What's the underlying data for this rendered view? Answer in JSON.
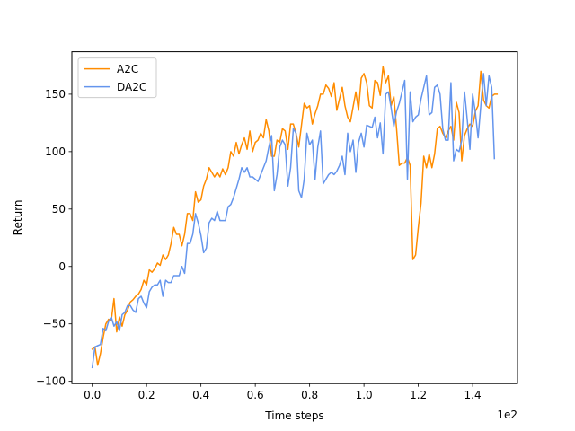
{
  "chart_data": {
    "type": "line",
    "xlabel": "Time steps",
    "ylabel": "Return",
    "x_offset_label": "1e2",
    "xlim": [
      -0.075,
      1.565
    ],
    "ylim": [
      -102,
      187
    ],
    "x_ticks": [
      0.0,
      0.2,
      0.4,
      0.6,
      0.8,
      1.0,
      1.2,
      1.4
    ],
    "x_tick_labels": [
      "0.0",
      "0.2",
      "0.4",
      "0.6",
      "0.8",
      "1.0",
      "1.2",
      "1.4"
    ],
    "y_ticks": [
      -100,
      -50,
      0,
      50,
      100,
      150
    ],
    "y_tick_labels": [
      "−100",
      "−50",
      "0",
      "50",
      "100",
      "150"
    ],
    "legend_position": "top-left",
    "series": [
      {
        "name": "A2C",
        "color": "#ff8c00",
        "x_start": 0.0,
        "x_step": 0.01,
        "values": [
          -72,
          -70,
          -86,
          -76,
          -62,
          -50,
          -46,
          -47,
          -28,
          -57,
          -44,
          -52,
          -42,
          -38,
          -31,
          -29,
          -26,
          -24,
          -20,
          -12,
          -16,
          -3,
          -5,
          -2,
          3,
          1,
          10,
          6,
          10,
          20,
          34,
          28,
          28,
          18,
          28,
          46,
          46,
          40,
          65,
          56,
          58,
          70,
          76,
          86,
          82,
          78,
          82,
          78,
          85,
          80,
          86,
          100,
          96,
          108,
          98,
          106,
          112,
          102,
          118,
          100,
          108,
          110,
          116,
          112,
          128,
          118,
          96,
          96,
          110,
          108,
          120,
          118,
          102,
          124,
          124,
          116,
          104,
          123,
          142,
          138,
          140,
          124,
          133,
          140,
          150,
          150,
          158,
          155,
          148,
          160,
          136,
          146,
          156,
          140,
          130,
          126,
          139,
          152,
          136,
          164,
          168,
          160,
          140,
          138,
          162,
          160,
          149,
          174,
          160,
          166,
          140,
          148,
          120,
          88,
          90,
          90,
          95,
          88,
          6,
          10,
          34,
          55,
          96,
          86,
          98,
          86,
          98,
          120,
          122,
          116,
          112,
          118,
          122,
          110,
          143,
          134,
          92,
          114,
          120,
          124,
          122,
          135,
          140,
          170,
          145,
          140,
          138,
          148,
          150
        ],
        "values_ext": [
          150
        ]
      },
      {
        "name": "DA2C",
        "color": "#6495ed",
        "x_start": 0.0,
        "x_step": 0.01,
        "values": [
          -88,
          -70,
          -69,
          -68,
          -54,
          -56,
          -48,
          -44,
          -52,
          -48,
          -56,
          -42,
          -40,
          -34,
          -34,
          -38,
          -40,
          -28,
          -26,
          -32,
          -36,
          -22,
          -18,
          -16,
          -16,
          -12,
          -26,
          -12,
          -14,
          -14,
          -8,
          -8,
          -8,
          0,
          -6,
          20,
          20,
          28,
          46,
          38,
          27,
          12,
          16,
          38,
          42,
          40,
          48,
          40,
          40,
          40,
          52,
          54,
          60,
          68,
          76,
          86,
          82,
          86,
          78,
          78,
          76,
          74,
          80,
          86,
          92,
          104,
          114,
          66,
          80,
          104,
          110,
          106,
          70,
          86,
          120,
          116,
          66,
          60,
          76,
          116,
          106,
          110,
          76,
          104,
          118,
          72,
          76,
          80,
          82,
          80,
          83,
          88,
          96,
          80,
          116,
          100,
          110,
          82,
          108,
          116,
          104,
          123,
          122,
          121,
          130,
          112,
          125,
          98,
          150,
          152,
          138,
          122,
          135,
          142,
          152,
          162,
          76,
          152,
          126,
          130,
          132,
          146,
          156,
          166,
          132,
          134,
          156,
          158,
          150,
          120,
          110,
          110,
          160,
          92,
          102,
          100,
          110,
          152,
          128,
          102,
          150,
          134,
          112,
          140,
          168,
          140,
          166,
          156,
          94
        ],
        "values_ext": []
      }
    ]
  }
}
